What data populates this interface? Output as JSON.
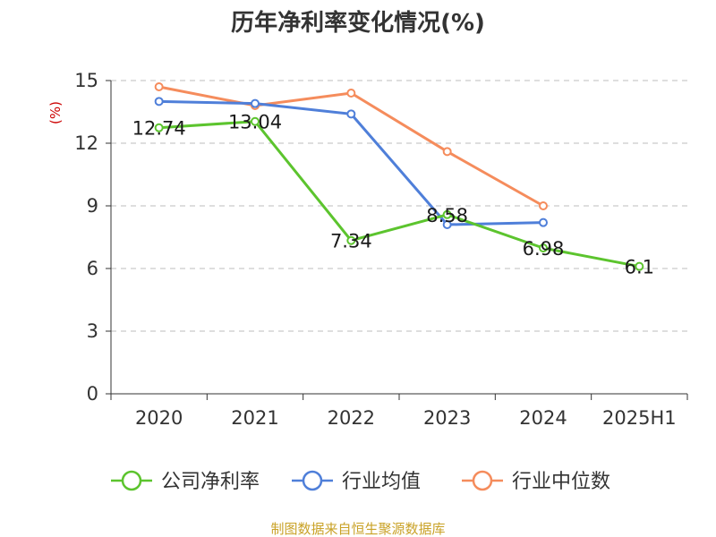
{
  "chart_data": {
    "type": "line",
    "title": "历年净利率变化情况(%)",
    "unit_label": "(%)",
    "categories": [
      "2020",
      "2021",
      "2022",
      "2023",
      "2024",
      "2025H1"
    ],
    "ylim": [
      0,
      15
    ],
    "yticks": [
      0,
      3,
      6,
      9,
      12,
      15
    ],
    "grid": true,
    "legend_position": "bottom",
    "series": [
      {
        "name": "公司净利率",
        "color": "#5cc42e",
        "values": [
          12.74,
          13.04,
          7.34,
          8.58,
          6.98,
          6.1
        ],
        "labels": [
          "12.74",
          "13.04",
          "7.34",
          "8.58",
          "6.98",
          "6.1"
        ]
      },
      {
        "name": "行业均值",
        "color": "#4f7fd9",
        "values": [
          14.0,
          13.9,
          13.4,
          8.1,
          8.2,
          null
        ]
      },
      {
        "name": "行业中位数",
        "color": "#f58c5c",
        "values": [
          14.7,
          13.8,
          14.4,
          11.6,
          9.0,
          null
        ]
      }
    ]
  },
  "source_text": "制图数据来自恒生聚源数据库"
}
